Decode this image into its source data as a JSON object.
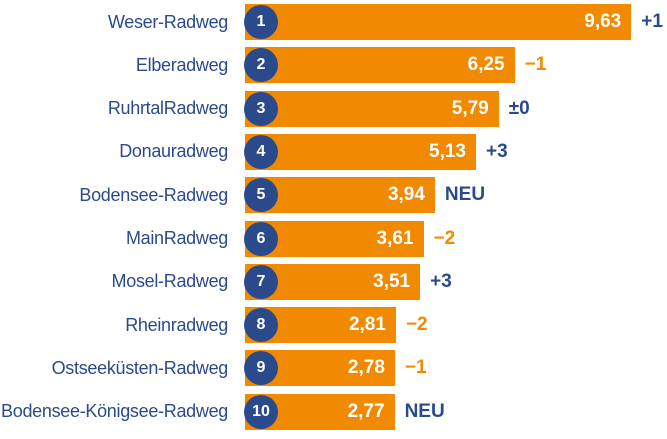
{
  "chart_data": {
    "type": "bar",
    "categories": [
      "Weser-Radweg",
      "Elberadweg",
      "RuhrtalRadweg",
      "Donauradweg",
      "Bodensee-Radweg",
      "MainRadweg",
      "Mosel-Radweg",
      "Rheinradweg",
      "Ostseeküsten-Radweg",
      "Bodensee-Königsee-Radweg"
    ],
    "ranks": [
      "1",
      "2",
      "3",
      "4",
      "5",
      "6",
      "7",
      "8",
      "9",
      "10"
    ],
    "values": [
      9.63,
      6.25,
      5.79,
      5.13,
      3.94,
      3.61,
      3.51,
      2.81,
      2.78,
      2.77
    ],
    "value_labels": [
      "9,63",
      "6,25",
      "5,79",
      "5,13",
      "3,94",
      "3,61",
      "3,51",
      "2,81",
      "2,78",
      "2,77"
    ],
    "changes": [
      "+1",
      "−1",
      "±0",
      "+3",
      "NEU",
      "−2",
      "+3",
      "−2",
      "−1",
      "NEU"
    ],
    "color": "#f18a00",
    "rank_color": "#2b4a8c",
    "text_color": "#2b4a8c",
    "negative_color": "#f18a00"
  }
}
